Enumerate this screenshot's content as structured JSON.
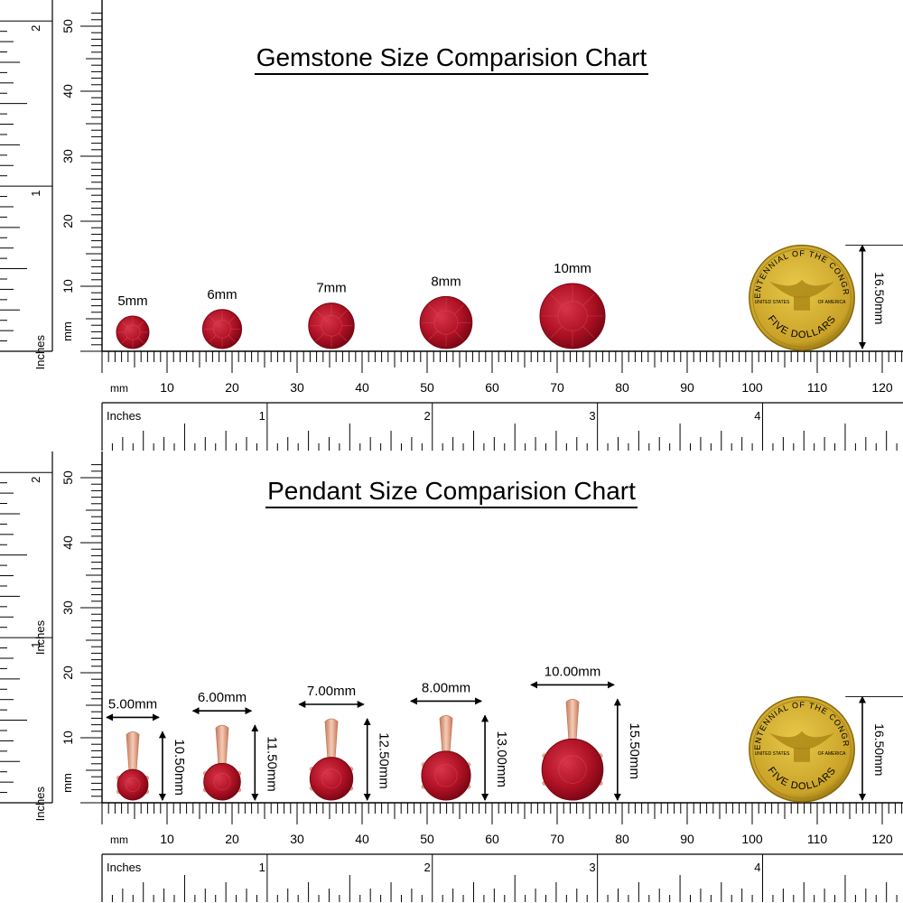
{
  "charts": [
    {
      "title": "Gemstone Size Comparision Chart",
      "mm_label": "mm",
      "inches_label": "Inches",
      "axis_mm_label": "mm",
      "axis_inches_label": "Inches",
      "bottom_mm_ticks": [
        "10",
        "20",
        "30",
        "40",
        "50",
        "60",
        "70",
        "80",
        "90",
        "100",
        "110",
        "120"
      ],
      "bottom_in_ticks": [
        "1",
        "2",
        "3",
        "4"
      ],
      "left_mm_ticks": [
        "10",
        "20",
        "30",
        "40",
        "50"
      ],
      "left_in_ticks": [
        "1",
        "2"
      ],
      "items": [
        {
          "label": "5mm",
          "size_mm": 5
        },
        {
          "label": "6mm",
          "size_mm": 6
        },
        {
          "label": "7mm",
          "size_mm": 7
        },
        {
          "label": "8mm",
          "size_mm": 8
        },
        {
          "label": "10mm",
          "size_mm": 10
        }
      ],
      "coin": {
        "height_label": "16.50mm",
        "height_mm": 16.5,
        "top_text": "BICENTENNIAL OF THE CONGRESS",
        "bottom_text": "FIVE DOLLARS",
        "left_text": "UNITED STATES",
        "right_text": "OF AMERICA"
      }
    },
    {
      "title": "Pendant Size Comparision Chart",
      "mm_label": "mm",
      "inches_label": "Inches",
      "axis_mm_label": "mm",
      "axis_inches_label": "Inches",
      "bottom_mm_ticks": [
        "10",
        "20",
        "30",
        "40",
        "50",
        "60",
        "70",
        "80",
        "90",
        "100",
        "110",
        "120"
      ],
      "bottom_in_ticks": [
        "1",
        "2",
        "3",
        "4"
      ],
      "left_mm_ticks": [
        "10",
        "20",
        "30",
        "40",
        "50"
      ],
      "left_in_ticks": [
        "1",
        "2"
      ],
      "items": [
        {
          "width_label": "5.00mm",
          "height_label": "10.50mm",
          "size_mm": 5,
          "height_mm": 10.5
        },
        {
          "width_label": "6.00mm",
          "height_label": "11.50mm",
          "size_mm": 6,
          "height_mm": 11.5
        },
        {
          "width_label": "7.00mm",
          "height_label": "12.50mm",
          "size_mm": 7,
          "height_mm": 12.5
        },
        {
          "width_label": "8.00mm",
          "height_label": "13.00mm",
          "size_mm": 8,
          "height_mm": 13
        },
        {
          "width_label": "10.00mm",
          "height_label": "15.50mm",
          "size_mm": 10,
          "height_mm": 15.5
        }
      ],
      "coin": {
        "height_label": "16.50mm",
        "height_mm": 16.5,
        "top_text": "BICENTENNIAL OF THE CONGRESS",
        "bottom_text": "FIVE DOLLARS",
        "left_text": "UNITED STATES",
        "right_text": "OF AMERICA"
      }
    }
  ],
  "colors": {
    "ruby": "#b01225",
    "ruby_dark": "#7a0614",
    "ruby_light": "#d8354a",
    "gold": "#c9a227",
    "gold_dark": "#8a6a0e",
    "rose_gold": "#e9a98c",
    "rose_gold_dark": "#c27a5c"
  }
}
